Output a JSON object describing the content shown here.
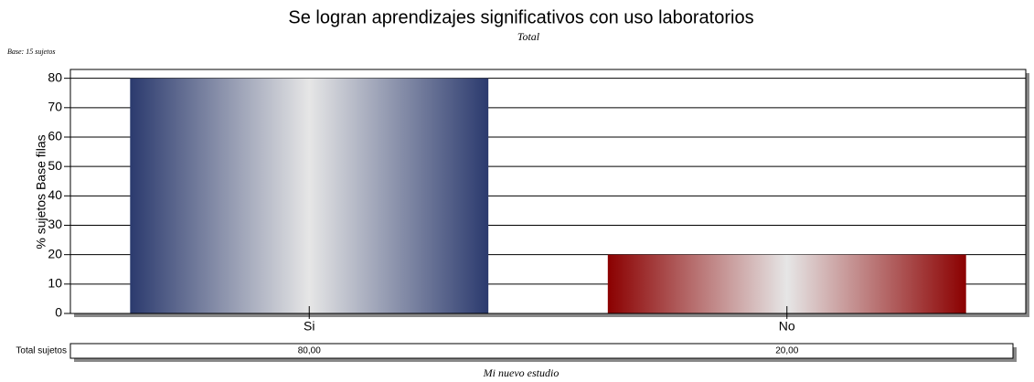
{
  "chart_data": {
    "type": "bar",
    "title": "Se logran aprendizajes significativos con uso laboratorios",
    "subtitle": "Total",
    "base_note": "Base: 15 sujetos",
    "ylabel": "% sujetos Base filas",
    "categories": [
      "Si",
      "No"
    ],
    "values": [
      80,
      20
    ],
    "value_labels": [
      "80,00",
      "20,00"
    ],
    "colors": [
      "#2b3a6e",
      "#8b0000"
    ],
    "table_row_label": "Total sujetos",
    "footer": "Mi nuevo estudio",
    "ylim": [
      0,
      83
    ],
    "yticks": [
      0,
      10,
      20,
      30,
      40,
      50,
      60,
      70,
      80
    ],
    "grid": true
  }
}
